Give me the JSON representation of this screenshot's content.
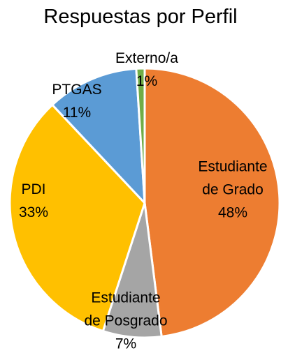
{
  "chart_data": {
    "type": "pie",
    "title": "Respuestas por Perfil",
    "categories": [
      "Estudiante de Grado",
      "Estudiante de Posgrado",
      "PDI",
      "PTGAS",
      "Externo/a"
    ],
    "values": [
      48,
      7,
      33,
      11,
      1
    ],
    "value_labels": [
      "48%",
      "7%",
      "33%",
      "11%",
      "1%"
    ],
    "colors": [
      "#ed7d31",
      "#a5a5a5",
      "#ffc000",
      "#5b9bd5",
      "#70ad47"
    ]
  }
}
